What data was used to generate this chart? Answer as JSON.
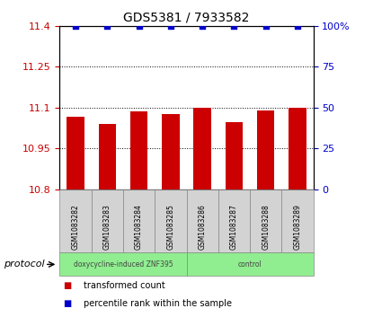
{
  "title": "GDS5381 / 7933582",
  "categories": [
    "GSM1083282",
    "GSM1083283",
    "GSM1083284",
    "GSM1083285",
    "GSM1083286",
    "GSM1083287",
    "GSM1083288",
    "GSM1083289"
  ],
  "bar_values": [
    11.065,
    11.04,
    11.085,
    11.075,
    11.1,
    11.045,
    11.09,
    11.1
  ],
  "percentile_values": [
    100,
    100,
    100,
    100,
    100,
    100,
    100,
    100
  ],
  "bar_color": "#cc0000",
  "dot_color": "#0000cc",
  "ylim_left": [
    10.8,
    11.4
  ],
  "ylim_right": [
    0,
    100
  ],
  "yticks_left": [
    10.8,
    10.95,
    11.1,
    11.25,
    11.4
  ],
  "yticks_right": [
    0,
    25,
    50,
    75,
    100
  ],
  "grid_values": [
    10.95,
    11.1,
    11.25
  ],
  "protocol_groups": [
    {
      "label": "doxycycline-induced ZNF395",
      "count": 4,
      "color": "#90ee90"
    },
    {
      "label": "control",
      "count": 4,
      "color": "#90ee90"
    }
  ],
  "protocol_label": "protocol",
  "legend_items": [
    {
      "color": "#cc0000",
      "label": "transformed count"
    },
    {
      "color": "#0000cc",
      "label": "percentile rank within the sample"
    }
  ],
  "background_color": "#ffffff",
  "plot_bg_color": "#ffffff",
  "tick_label_color_left": "#cc0000",
  "tick_label_color_right": "#0000cc",
  "bar_width": 0.55,
  "ybase": 10.8,
  "figsize": [
    4.15,
    3.63
  ],
  "dpi": 100
}
